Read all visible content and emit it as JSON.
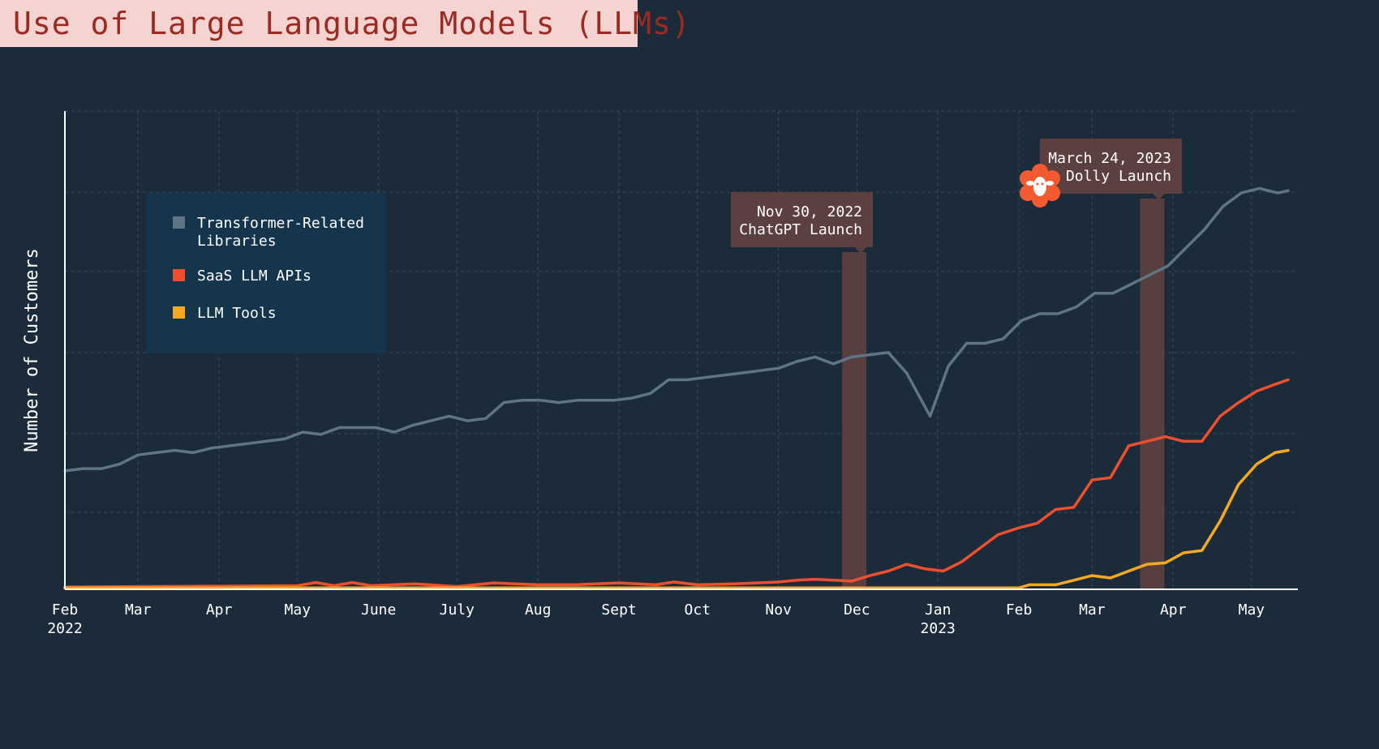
{
  "title": "Use of Large Language Models (LLMs)",
  "colors": {
    "background": "#1c2b3a",
    "title_bg": "#f4d3d1",
    "title_text": "#9b2a22",
    "transformer": "#5f7585",
    "saas": "#f04f2e",
    "tools": "#f6a821",
    "annotation": "#5b403f",
    "legend_bg": "#14354b"
  },
  "chart_data": {
    "type": "line",
    "ylabel": "Number of Customers",
    "xlabel": "",
    "x_ticks": [
      {
        "date": "2022-02-01",
        "label": "Feb",
        "sublabel": "2022"
      },
      {
        "date": "2022-03-01",
        "label": "Mar",
        "sublabel": ""
      },
      {
        "date": "2022-04-01",
        "label": "Apr",
        "sublabel": ""
      },
      {
        "date": "2022-05-01",
        "label": "May",
        "sublabel": ""
      },
      {
        "date": "2022-06-01",
        "label": "June",
        "sublabel": ""
      },
      {
        "date": "2022-07-01",
        "label": "July",
        "sublabel": ""
      },
      {
        "date": "2022-08-01",
        "label": "Aug",
        "sublabel": ""
      },
      {
        "date": "2022-09-01",
        "label": "Sept",
        "sublabel": ""
      },
      {
        "date": "2022-10-01",
        "label": "Oct",
        "sublabel": ""
      },
      {
        "date": "2022-11-01",
        "label": "Nov",
        "sublabel": ""
      },
      {
        "date": "2022-12-01",
        "label": "Dec",
        "sublabel": ""
      },
      {
        "date": "2023-01-01",
        "label": "Jan",
        "sublabel": "2023"
      },
      {
        "date": "2023-02-01",
        "label": "Feb",
        "sublabel": ""
      },
      {
        "date": "2023-03-01",
        "label": "Mar",
        "sublabel": ""
      },
      {
        "date": "2023-04-01",
        "label": "Apr",
        "sublabel": ""
      },
      {
        "date": "2023-05-01",
        "label": "May",
        "sublabel": ""
      }
    ],
    "x_range": [
      "2022-02-01",
      "2023-05-15"
    ],
    "y_range": [
      0,
      100
    ],
    "y_ticks_shown": false,
    "grid": true,
    "legend": {
      "placement": "upper-left",
      "entries": [
        {
          "lines": [
            "Transformer-Related",
            "Libraries"
          ],
          "color": "#5f7585"
        },
        {
          "lines": [
            "SaaS LLM APIs"
          ],
          "color": "#f04f2e"
        },
        {
          "lines": [
            "LLM Tools"
          ],
          "color": "#f6a821"
        }
      ]
    },
    "annotations": [
      {
        "date": "2022-11-30",
        "lines": [
          "Nov 30, 2022",
          "ChatGPT Launch"
        ]
      },
      {
        "date": "2023-03-24",
        "lines": [
          "March 24, 2023",
          "Dolly Launch"
        ],
        "icon": "dolly-sheep-logo"
      }
    ],
    "series": [
      {
        "key": "transformer",
        "color": "#5f7585",
        "points": [
          [
            "2022-02-01",
            26
          ],
          [
            "2022-02-08",
            26.5
          ],
          [
            "2022-02-15",
            26.5
          ],
          [
            "2022-02-22",
            27.5
          ],
          [
            "2022-03-01",
            29.5
          ],
          [
            "2022-03-08",
            30
          ],
          [
            "2022-03-15",
            30.5
          ],
          [
            "2022-03-22",
            30
          ],
          [
            "2022-03-29",
            31
          ],
          [
            "2022-04-05",
            31.5
          ],
          [
            "2022-04-12",
            32
          ],
          [
            "2022-04-19",
            32.5
          ],
          [
            "2022-04-26",
            33
          ],
          [
            "2022-05-03",
            34.5
          ],
          [
            "2022-05-10",
            34
          ],
          [
            "2022-05-17",
            35.5
          ],
          [
            "2022-05-24",
            35.5
          ],
          [
            "2022-05-31",
            35.5
          ],
          [
            "2022-06-07",
            34.5
          ],
          [
            "2022-06-14",
            36
          ],
          [
            "2022-06-21",
            37
          ],
          [
            "2022-06-28",
            38
          ],
          [
            "2022-07-05",
            37
          ],
          [
            "2022-07-12",
            37.5
          ],
          [
            "2022-07-19",
            41
          ],
          [
            "2022-07-26",
            41.5
          ],
          [
            "2022-08-02",
            41.5
          ],
          [
            "2022-08-09",
            41
          ],
          [
            "2022-08-16",
            41.5
          ],
          [
            "2022-08-23",
            41.5
          ],
          [
            "2022-08-30",
            41.5
          ],
          [
            "2022-09-06",
            42
          ],
          [
            "2022-09-13",
            43
          ],
          [
            "2022-09-20",
            46
          ],
          [
            "2022-09-27",
            46
          ],
          [
            "2022-10-04",
            46.5
          ],
          [
            "2022-10-11",
            47
          ],
          [
            "2022-10-18",
            47.5
          ],
          [
            "2022-10-25",
            48
          ],
          [
            "2022-11-01",
            48.5
          ],
          [
            "2022-11-08",
            50
          ],
          [
            "2022-11-15",
            51
          ],
          [
            "2022-11-22",
            49.5
          ],
          [
            "2022-11-29",
            51
          ],
          [
            "2022-12-06",
            51.5
          ],
          [
            "2022-12-13",
            52
          ],
          [
            "2022-12-20",
            47.5
          ],
          [
            "2022-12-29",
            38
          ],
          [
            "2023-01-05",
            49
          ],
          [
            "2023-01-12",
            54
          ],
          [
            "2023-01-19",
            54
          ],
          [
            "2023-01-26",
            55
          ],
          [
            "2023-02-02",
            59
          ],
          [
            "2023-02-09",
            60.5
          ],
          [
            "2023-02-16",
            60.5
          ],
          [
            "2023-02-23",
            62
          ],
          [
            "2023-03-02",
            65
          ],
          [
            "2023-03-09",
            65
          ],
          [
            "2023-03-16",
            67
          ],
          [
            "2023-03-23",
            69
          ],
          [
            "2023-03-30",
            71
          ],
          [
            "2023-04-06",
            75
          ],
          [
            "2023-04-13",
            79
          ],
          [
            "2023-04-20",
            84
          ],
          [
            "2023-04-27",
            87
          ],
          [
            "2023-05-04",
            88
          ],
          [
            "2023-05-11",
            87
          ],
          [
            "2023-05-15",
            87.5
          ]
        ]
      },
      {
        "key": "saas",
        "color": "#f04f2e",
        "points": [
          [
            "2022-02-01",
            0.5
          ],
          [
            "2022-03-01",
            0.6
          ],
          [
            "2022-04-01",
            0.7
          ],
          [
            "2022-05-01",
            0.8
          ],
          [
            "2022-05-08",
            1.5
          ],
          [
            "2022-05-15",
            0.8
          ],
          [
            "2022-05-22",
            1.5
          ],
          [
            "2022-05-29",
            0.8
          ],
          [
            "2022-06-15",
            1.2
          ],
          [
            "2022-07-01",
            0.6
          ],
          [
            "2022-07-15",
            1.4
          ],
          [
            "2022-08-01",
            1.0
          ],
          [
            "2022-08-15",
            1.0
          ],
          [
            "2022-09-01",
            1.4
          ],
          [
            "2022-09-15",
            1.0
          ],
          [
            "2022-09-22",
            1.6
          ],
          [
            "2022-10-01",
            1.0
          ],
          [
            "2022-10-15",
            1.2
          ],
          [
            "2022-11-01",
            1.6
          ],
          [
            "2022-11-08",
            2.0
          ],
          [
            "2022-11-15",
            2.2
          ],
          [
            "2022-11-29",
            1.8
          ],
          [
            "2022-12-06",
            3.0
          ],
          [
            "2022-12-13",
            4.0
          ],
          [
            "2022-12-20",
            5.5
          ],
          [
            "2022-12-27",
            4.5
          ],
          [
            "2023-01-03",
            4.0
          ],
          [
            "2023-01-10",
            6.0
          ],
          [
            "2023-01-17",
            9.0
          ],
          [
            "2023-01-24",
            12.0
          ],
          [
            "2023-02-01",
            13.5
          ],
          [
            "2023-02-08",
            14.5
          ],
          [
            "2023-02-15",
            17.5
          ],
          [
            "2023-02-22",
            18.0
          ],
          [
            "2023-03-01",
            24.0
          ],
          [
            "2023-03-08",
            24.5
          ],
          [
            "2023-03-15",
            31.5
          ],
          [
            "2023-03-22",
            32.5
          ],
          [
            "2023-03-29",
            33.5
          ],
          [
            "2023-04-05",
            32.5
          ],
          [
            "2023-04-12",
            32.5
          ],
          [
            "2023-04-19",
            38.0
          ],
          [
            "2023-04-26",
            41.0
          ],
          [
            "2023-05-03",
            43.5
          ],
          [
            "2023-05-10",
            45.0
          ],
          [
            "2023-05-15",
            46.0
          ]
        ]
      },
      {
        "key": "tools",
        "color": "#f6a821",
        "points": [
          [
            "2022-02-01",
            0.3
          ],
          [
            "2022-06-01",
            0.3
          ],
          [
            "2022-12-01",
            0.3
          ],
          [
            "2023-02-01",
            0.3
          ],
          [
            "2023-02-05",
            1.0
          ],
          [
            "2023-02-15",
            1.0
          ],
          [
            "2023-02-22",
            2.0
          ],
          [
            "2023-03-01",
            3.0
          ],
          [
            "2023-03-08",
            2.5
          ],
          [
            "2023-03-15",
            4.0
          ],
          [
            "2023-03-22",
            5.5
          ],
          [
            "2023-03-29",
            5.8
          ],
          [
            "2023-04-05",
            8.0
          ],
          [
            "2023-04-12",
            8.5
          ],
          [
            "2023-04-19",
            15.0
          ],
          [
            "2023-04-26",
            23.0
          ],
          [
            "2023-05-03",
            27.5
          ],
          [
            "2023-05-10",
            30.0
          ],
          [
            "2023-05-15",
            30.5
          ]
        ]
      }
    ]
  }
}
